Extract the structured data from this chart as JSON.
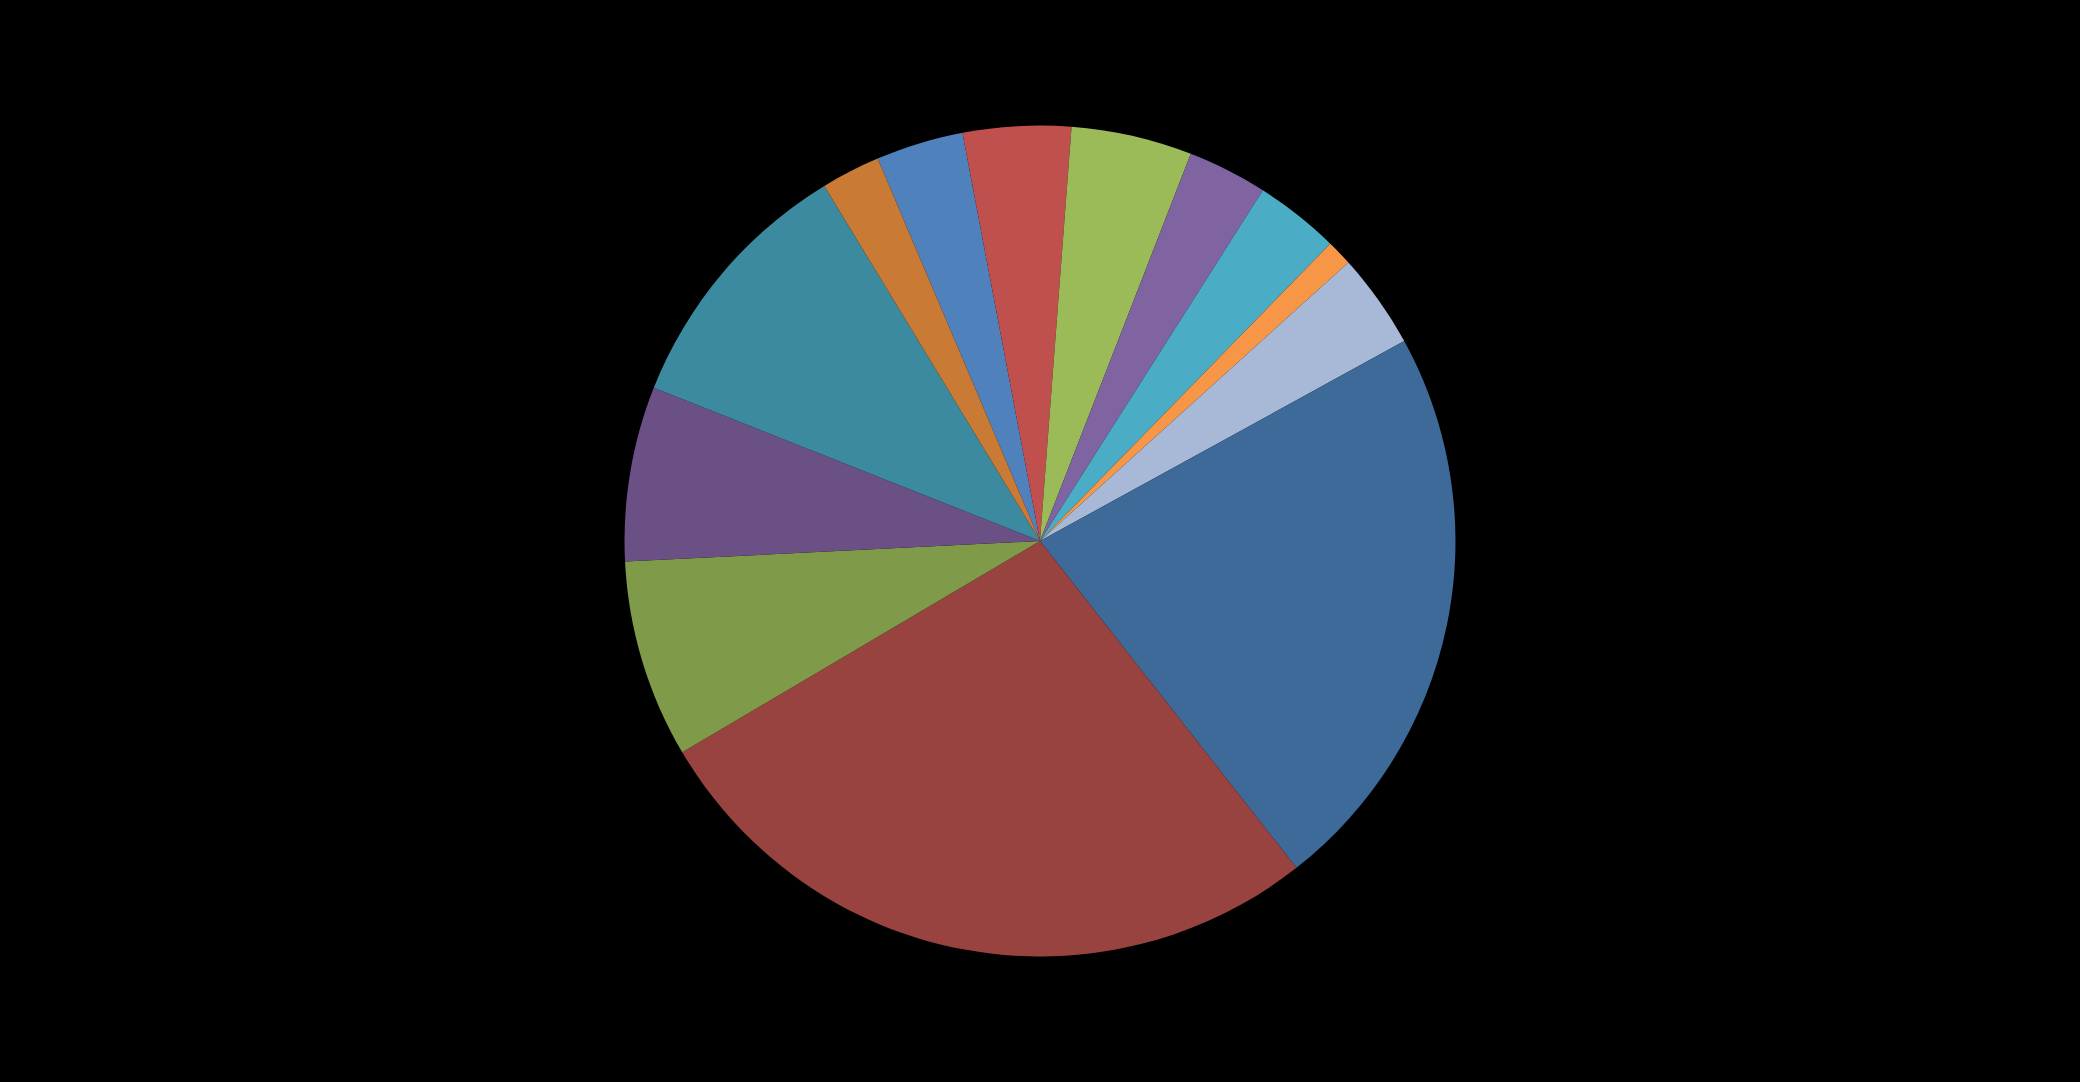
{
  "chart_data": {
    "type": "pie",
    "categories": [
      null,
      null,
      null,
      null,
      null,
      null,
      null,
      null,
      null,
      null,
      null,
      null,
      null
    ],
    "values": [
      3.4,
      4.2,
      4.7,
      3.1,
      3.3,
      1.0,
      3.7,
      22.4,
      27.1,
      7.7,
      6.8,
      10.3,
      2.3
    ],
    "colors": [
      "#4f81bd",
      "#c0504d",
      "#9bbb59",
      "#8064a2",
      "#4bacc6",
      "#f79646",
      "#a7b9d7",
      "#3d6a99",
      "#994340",
      "#7f9a48",
      "#6a5085",
      "#3c8aa0",
      "#c97a35"
    ]
  }
}
